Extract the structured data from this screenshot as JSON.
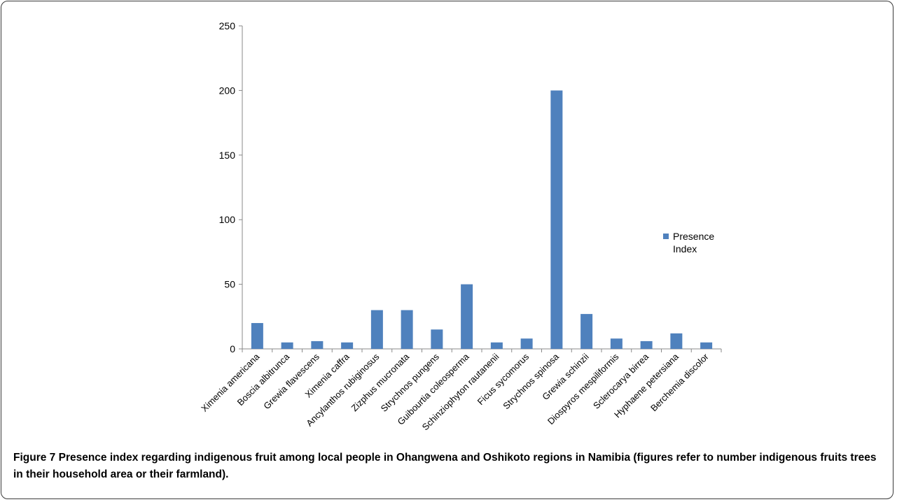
{
  "chart_data": {
    "type": "bar",
    "categories": [
      "Ximenia americana",
      "Boscia albitrunca",
      "Grewia flavescens",
      "Ximenia caffra",
      "Ancylanthos rubiginosus",
      "Zizphus mucronata",
      "Strychnos pungens",
      "Guibourtia coleosperma",
      "Schinziophyton rautanenii",
      "Ficus sycomorus",
      "Strychnos spinosa",
      "Grewia schinzii",
      "Diospyros mespiliformis",
      "Sclerocarya birrea",
      "Hyphaene petersiana",
      "Berchemia discolor"
    ],
    "series": [
      {
        "name": "Presence Index",
        "values": [
          20,
          5,
          6,
          5,
          30,
          30,
          15,
          50,
          5,
          8,
          200,
          27,
          8,
          6,
          12,
          5
        ]
      }
    ],
    "yticks": [
      "0",
      "50",
      "100",
      "150",
      "200",
      "250"
    ],
    "ylim": [
      0,
      250
    ],
    "grid": false,
    "legend_position": "right",
    "colors": {
      "bar": "#4f81bd",
      "axis": "#888888"
    }
  },
  "caption": {
    "label": "Figure 7",
    "text": "Presence index regarding indigenous fruit among local people in Ohangwena and Oshikoto regions in Namibia (figures refer to number indigenous fruits trees in their household area or their farmland)."
  }
}
